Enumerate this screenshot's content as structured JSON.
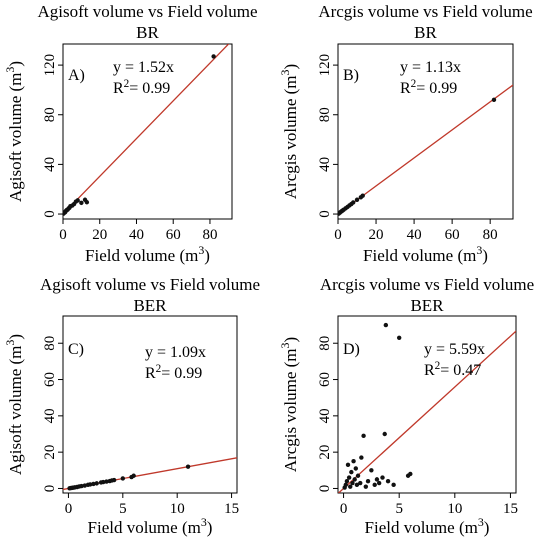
{
  "colors": {
    "fit_line": "#c0392b",
    "points": "#111111",
    "axis": "#000000"
  },
  "chart_data": [
    {
      "type": "scatter",
      "title": "Agisoft volume vs Field volume",
      "subtitle": "BR",
      "panel_label": "A)",
      "xlabel": "Field volume",
      "ylabel": "Agisoft volume",
      "unit": "(m3)",
      "eq": "y = 1.52x",
      "r2_label": "R2= 0.99",
      "slope": 1.52,
      "xlim": [
        0,
        92
      ],
      "ylim": [
        -4,
        137
      ],
      "xticks": [
        0,
        20,
        40,
        60,
        80
      ],
      "yticks": [
        0,
        40,
        80,
        120
      ],
      "points": [
        [
          0.2,
          0.3
        ],
        [
          0.5,
          0.8
        ],
        [
          0.8,
          1.2
        ],
        [
          1.2,
          1.5
        ],
        [
          1.5,
          2.4
        ],
        [
          2,
          3.2
        ],
        [
          2.5,
          3.5
        ],
        [
          3,
          4.5
        ],
        [
          3.5,
          5
        ],
        [
          4,
          6.3
        ],
        [
          5,
          6.8
        ],
        [
          6,
          8
        ],
        [
          7,
          10
        ],
        [
          8,
          11
        ],
        [
          10,
          9
        ],
        [
          12,
          11.5
        ],
        [
          13,
          9.5
        ],
        [
          82,
          127
        ]
      ]
    },
    {
      "type": "scatter",
      "title": "Arcgis volume vs Field volume",
      "subtitle": "BR",
      "panel_label": "B)",
      "xlabel": "Field volume",
      "ylabel": "Arcgis volume",
      "unit": "(m3)",
      "eq": "y = 1.13x",
      "r2_label": "R2= 0.99",
      "slope": 1.13,
      "xlim": [
        0,
        92
      ],
      "ylim": [
        -4,
        137
      ],
      "xticks": [
        0,
        20,
        40,
        60,
        80
      ],
      "yticks": [
        0,
        40,
        80,
        120
      ],
      "points": [
        [
          0.3,
          0.3
        ],
        [
          0.6,
          0.7
        ],
        [
          1,
          1.2
        ],
        [
          1.5,
          1.8
        ],
        [
          2,
          2.4
        ],
        [
          2.5,
          2.9
        ],
        [
          3,
          3.5
        ],
        [
          4,
          4.6
        ],
        [
          5,
          5.7
        ],
        [
          6,
          6.9
        ],
        [
          7,
          8
        ],
        [
          8,
          9.3
        ],
        [
          10,
          11.5
        ],
        [
          12,
          13.5
        ],
        [
          13,
          14.8
        ],
        [
          82,
          92
        ]
      ]
    },
    {
      "type": "scatter",
      "title": "Agisoft volume vs Field volume",
      "subtitle": "BER",
      "panel_label": "C)",
      "xlabel": "Field volume",
      "ylabel": "Agisoft volume",
      "unit": "(m3)",
      "eq": "y = 1.09x",
      "r2_label": "R2= 0.99",
      "slope": 1.09,
      "xlim": [
        -0.5,
        15.5
      ],
      "ylim": [
        -2.5,
        95
      ],
      "xticks": [
        0,
        5,
        10,
        15
      ],
      "yticks": [
        0,
        20,
        40,
        60,
        80
      ],
      "points": [
        [
          0.1,
          0.1
        ],
        [
          0.2,
          0.2
        ],
        [
          0.3,
          0.3
        ],
        [
          0.4,
          0.4
        ],
        [
          0.5,
          0.5
        ],
        [
          0.6,
          0.6
        ],
        [
          0.8,
          0.8
        ],
        [
          1,
          1.1
        ],
        [
          1.2,
          1.3
        ],
        [
          1.5,
          1.6
        ],
        [
          1.8,
          2
        ],
        [
          2,
          2.2
        ],
        [
          2.3,
          2.5
        ],
        [
          2.6,
          2.8
        ],
        [
          3,
          3.3
        ],
        [
          3.2,
          3.5
        ],
        [
          3.5,
          3.8
        ],
        [
          3.8,
          4.1
        ],
        [
          4,
          4.4
        ],
        [
          4.2,
          4.6
        ],
        [
          5,
          5.5
        ],
        [
          5.8,
          6.3
        ],
        [
          6,
          7
        ],
        [
          11,
          12
        ]
      ]
    },
    {
      "type": "scatter",
      "title": "Arcgis volume vs Field volume",
      "subtitle": "BER",
      "panel_label": "D)",
      "xlabel": "Field volume",
      "ylabel": "Arcgis volume",
      "unit": "(m3)",
      "eq": "y = 5.59x",
      "r2_label": "R2= 0.47",
      "slope": 5.59,
      "xlim": [
        -0.5,
        15.5
      ],
      "ylim": [
        -2.5,
        95
      ],
      "xticks": [
        0,
        5,
        10,
        15
      ],
      "yticks": [
        0,
        20,
        40,
        60,
        80
      ],
      "points": [
        [
          0.1,
          0.5
        ],
        [
          0.2,
          2
        ],
        [
          0.3,
          4
        ],
        [
          0.4,
          13
        ],
        [
          0.5,
          6
        ],
        [
          0.6,
          1
        ],
        [
          0.7,
          9
        ],
        [
          0.8,
          3
        ],
        [
          0.9,
          15
        ],
        [
          1,
          5
        ],
        [
          1.1,
          11
        ],
        [
          1.2,
          2
        ],
        [
          1.3,
          7
        ],
        [
          1.5,
          3
        ],
        [
          1.6,
          17
        ],
        [
          1.8,
          29
        ],
        [
          2,
          1
        ],
        [
          2.2,
          4
        ],
        [
          2.5,
          10
        ],
        [
          2.8,
          2
        ],
        [
          3,
          5
        ],
        [
          3.2,
          3
        ],
        [
          3.5,
          6
        ],
        [
          3.7,
          30
        ],
        [
          3.8,
          90
        ],
        [
          4,
          4
        ],
        [
          4.5,
          2
        ],
        [
          5,
          83
        ],
        [
          5.8,
          7
        ],
        [
          6,
          8
        ]
      ]
    }
  ]
}
